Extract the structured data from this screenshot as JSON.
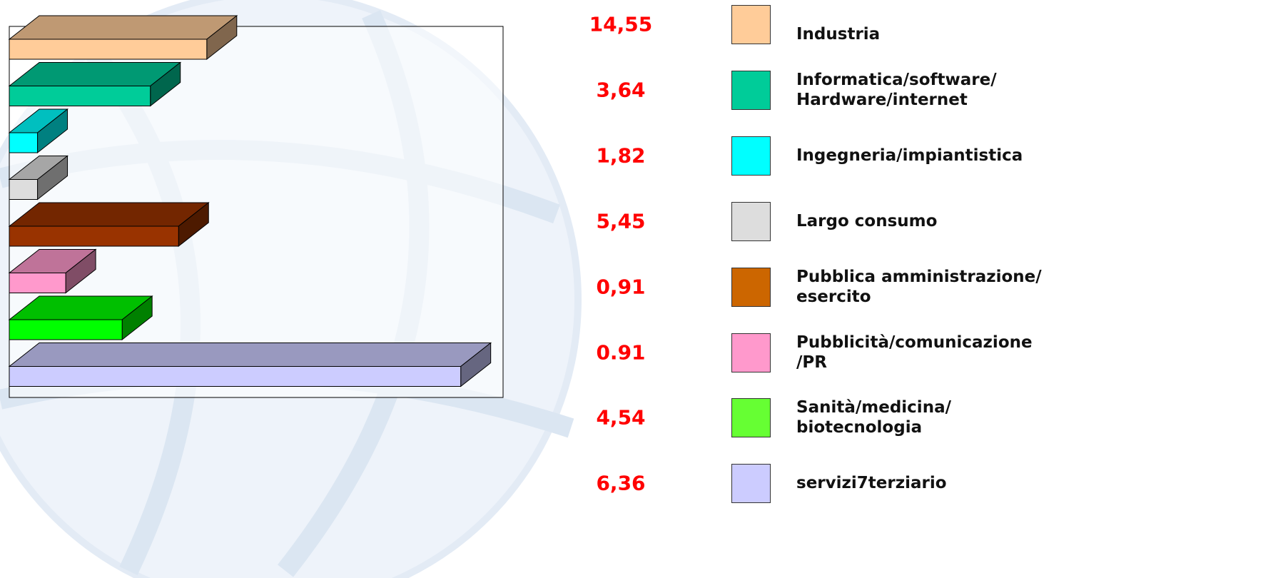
{
  "chart_data": {
    "type": "bar3d_horizontal",
    "categories": [
      "Industria",
      "Informatica/software/\nHardware/internet",
      "Ingegneria/impiantistica",
      "Largo consumo",
      "Pubblica amministrazione/\nesercito",
      "Pubblicità/comunicazione\n/PR",
      "Sanità/medicina/\nbiotecnologia",
      "servizi7terziario"
    ],
    "values": [
      14,
      10,
      2,
      2,
      12,
      4,
      8,
      32
    ],
    "printed_numbers": [
      "14,55",
      "3,64",
      "1,82",
      "5,45",
      "0,91",
      "0.91",
      "4,54",
      "6,36"
    ],
    "colors": [
      "#ffcc99",
      "#00cc99",
      "#00ffff",
      "#dddddd",
      "#993300",
      "#ff99cc",
      "#00ff00",
      "#ccccff"
    ],
    "legend_colors": [
      "#ffcc99",
      "#00cc99",
      "#00ffff",
      "#dddddd",
      "#cc6600",
      "#ff99cc",
      "#66ff33",
      "#ccccff"
    ],
    "xlim": [
      0,
      35
    ]
  }
}
